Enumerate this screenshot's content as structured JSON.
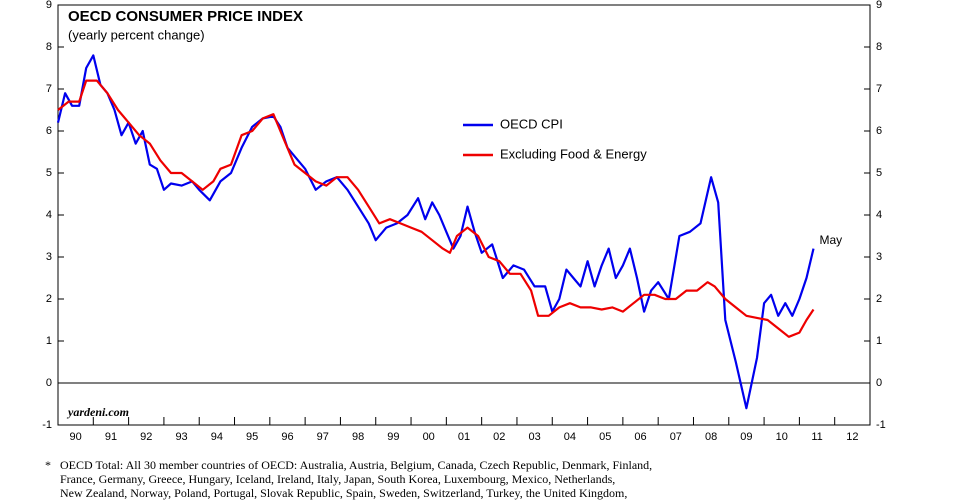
{
  "chart_data": {
    "type": "line",
    "title": "OECD CONSUMER PRICE INDEX",
    "subtitle": "(yearly percent change)",
    "source": "yardeni.com",
    "end_label": "May",
    "footnote_marker": "*",
    "footnote": [
      "OECD Total: All 30 member countries of OECD: Australia, Austria, Belgium, Canada, Czech Republic, Denmark, Finland,",
      "France, Germany, Greece, Hungary, Iceland, Ireland, Italy, Japan, South Korea, Luxembourg, Mexico, Netherlands,",
      "New Zealand, Norway, Poland, Portugal, Slovak Republic, Spain, Sweden, Switzerland, Turkey, the United Kingdom,"
    ],
    "xlim": [
      1990,
      2013
    ],
    "xticks": [
      {
        "value": 1990,
        "label": "90"
      },
      {
        "value": 1991,
        "label": "91"
      },
      {
        "value": 1992,
        "label": "92"
      },
      {
        "value": 1993,
        "label": "93"
      },
      {
        "value": 1994,
        "label": "94"
      },
      {
        "value": 1995,
        "label": "95"
      },
      {
        "value": 1996,
        "label": "96"
      },
      {
        "value": 1997,
        "label": "97"
      },
      {
        "value": 1998,
        "label": "98"
      },
      {
        "value": 1999,
        "label": "99"
      },
      {
        "value": 2000,
        "label": "00"
      },
      {
        "value": 2001,
        "label": "01"
      },
      {
        "value": 2002,
        "label": "02"
      },
      {
        "value": 2003,
        "label": "03"
      },
      {
        "value": 2004,
        "label": "04"
      },
      {
        "value": 2005,
        "label": "05"
      },
      {
        "value": 2006,
        "label": "06"
      },
      {
        "value": 2007,
        "label": "07"
      },
      {
        "value": 2008,
        "label": "08"
      },
      {
        "value": 2009,
        "label": "09"
      },
      {
        "value": 2010,
        "label": "10"
      },
      {
        "value": 2011,
        "label": "11"
      },
      {
        "value": 2012,
        "label": "12"
      }
    ],
    "ylim": [
      -1,
      9
    ],
    "yticks": [
      -1,
      0,
      1,
      2,
      3,
      4,
      5,
      6,
      7,
      8,
      9
    ],
    "hline": 0,
    "series": [
      {
        "name": "OECD CPI",
        "color": "#0000ee",
        "x": [
          1990.0,
          1990.2,
          1990.4,
          1990.6,
          1990.8,
          1991.0,
          1991.2,
          1991.4,
          1991.6,
          1991.8,
          1992.0,
          1992.2,
          1992.4,
          1992.6,
          1992.8,
          1993.0,
          1993.2,
          1993.5,
          1993.8,
          1994.0,
          1994.3,
          1994.6,
          1994.9,
          1995.2,
          1995.5,
          1995.8,
          1996.1,
          1996.3,
          1996.5,
          1996.7,
          1997.0,
          1997.3,
          1997.6,
          1997.9,
          1998.2,
          1998.5,
          1998.8,
          1999.0,
          1999.3,
          1999.6,
          1999.9,
          2000.2,
          2000.4,
          2000.6,
          2000.8,
          2001.0,
          2001.2,
          2001.4,
          2001.6,
          2001.8,
          2002.0,
          2002.3,
          2002.6,
          2002.9,
          2003.2,
          2003.5,
          2003.8,
          2004.0,
          2004.2,
          2004.4,
          2004.6,
          2004.8,
          2005.0,
          2005.2,
          2005.4,
          2005.6,
          2005.8,
          2006.0,
          2006.2,
          2006.4,
          2006.6,
          2006.8,
          2007.0,
          2007.3,
          2007.6,
          2007.9,
          2008.2,
          2008.5,
          2008.7,
          2008.9,
          2009.2,
          2009.5,
          2009.8,
          2010.0,
          2010.2,
          2010.4,
          2010.6,
          2010.8,
          2011.0,
          2011.2,
          2011.4
        ],
        "values": [
          6.2,
          6.9,
          6.6,
          6.6,
          7.5,
          7.8,
          7.1,
          6.9,
          6.5,
          5.9,
          6.2,
          5.7,
          6.0,
          5.2,
          5.1,
          4.6,
          4.75,
          4.7,
          4.8,
          4.6,
          4.35,
          4.8,
          5.0,
          5.6,
          6.1,
          6.3,
          6.35,
          6.1,
          5.6,
          5.4,
          5.1,
          4.6,
          4.8,
          4.9,
          4.6,
          4.2,
          3.8,
          3.4,
          3.7,
          3.8,
          4.0,
          4.4,
          3.9,
          4.3,
          4.0,
          3.6,
          3.2,
          3.5,
          4.2,
          3.6,
          3.1,
          3.3,
          2.5,
          2.8,
          2.7,
          2.3,
          2.3,
          1.7,
          2.0,
          2.7,
          2.5,
          2.3,
          2.9,
          2.3,
          2.8,
          3.2,
          2.5,
          2.8,
          3.2,
          2.5,
          1.7,
          2.2,
          2.4,
          2.0,
          3.5,
          3.6,
          3.8,
          4.9,
          4.3,
          1.5,
          0.5,
          -0.6,
          0.6,
          1.9,
          2.1,
          1.6,
          1.9,
          1.6,
          2.0,
          2.5,
          3.2
        ]
      },
      {
        "name": "Excluding Food & Energy",
        "color": "#ee0000",
        "x": [
          1990.0,
          1990.3,
          1990.6,
          1990.8,
          1991.1,
          1991.4,
          1991.7,
          1992.0,
          1992.3,
          1992.6,
          1992.9,
          1993.2,
          1993.5,
          1993.8,
          1994.1,
          1994.4,
          1994.6,
          1994.9,
          1995.2,
          1995.5,
          1995.8,
          1996.1,
          1996.4,
          1996.7,
          1997.0,
          1997.3,
          1997.6,
          1997.9,
          1998.2,
          1998.5,
          1998.8,
          1999.1,
          1999.4,
          1999.7,
          2000.0,
          2000.3,
          2000.6,
          2000.9,
          2001.1,
          2001.3,
          2001.6,
          2001.9,
          2002.2,
          2002.5,
          2002.8,
          2003.1,
          2003.4,
          2003.6,
          2003.9,
          2004.2,
          2004.5,
          2004.8,
          2005.1,
          2005.4,
          2005.7,
          2006.0,
          2006.3,
          2006.6,
          2006.9,
          2007.2,
          2007.5,
          2007.8,
          2008.1,
          2008.4,
          2008.6,
          2008.9,
          2009.2,
          2009.5,
          2009.8,
          2010.1,
          2010.4,
          2010.7,
          2011.0,
          2011.2,
          2011.4
        ],
        "values": [
          6.5,
          6.7,
          6.7,
          7.2,
          7.2,
          6.9,
          6.5,
          6.2,
          5.9,
          5.7,
          5.3,
          5.0,
          5.0,
          4.8,
          4.6,
          4.8,
          5.1,
          5.2,
          5.9,
          6.0,
          6.3,
          6.4,
          5.8,
          5.2,
          5.0,
          4.8,
          4.7,
          4.9,
          4.9,
          4.6,
          4.2,
          3.8,
          3.9,
          3.8,
          3.7,
          3.6,
          3.4,
          3.2,
          3.1,
          3.5,
          3.7,
          3.5,
          3.0,
          2.9,
          2.6,
          2.6,
          2.2,
          1.6,
          1.6,
          1.8,
          1.9,
          1.8,
          1.8,
          1.75,
          1.8,
          1.7,
          1.9,
          2.1,
          2.1,
          2.0,
          2.0,
          2.2,
          2.2,
          2.4,
          2.3,
          2.0,
          1.8,
          1.6,
          1.55,
          1.5,
          1.3,
          1.1,
          1.2,
          1.5,
          1.75
        ]
      }
    ]
  }
}
